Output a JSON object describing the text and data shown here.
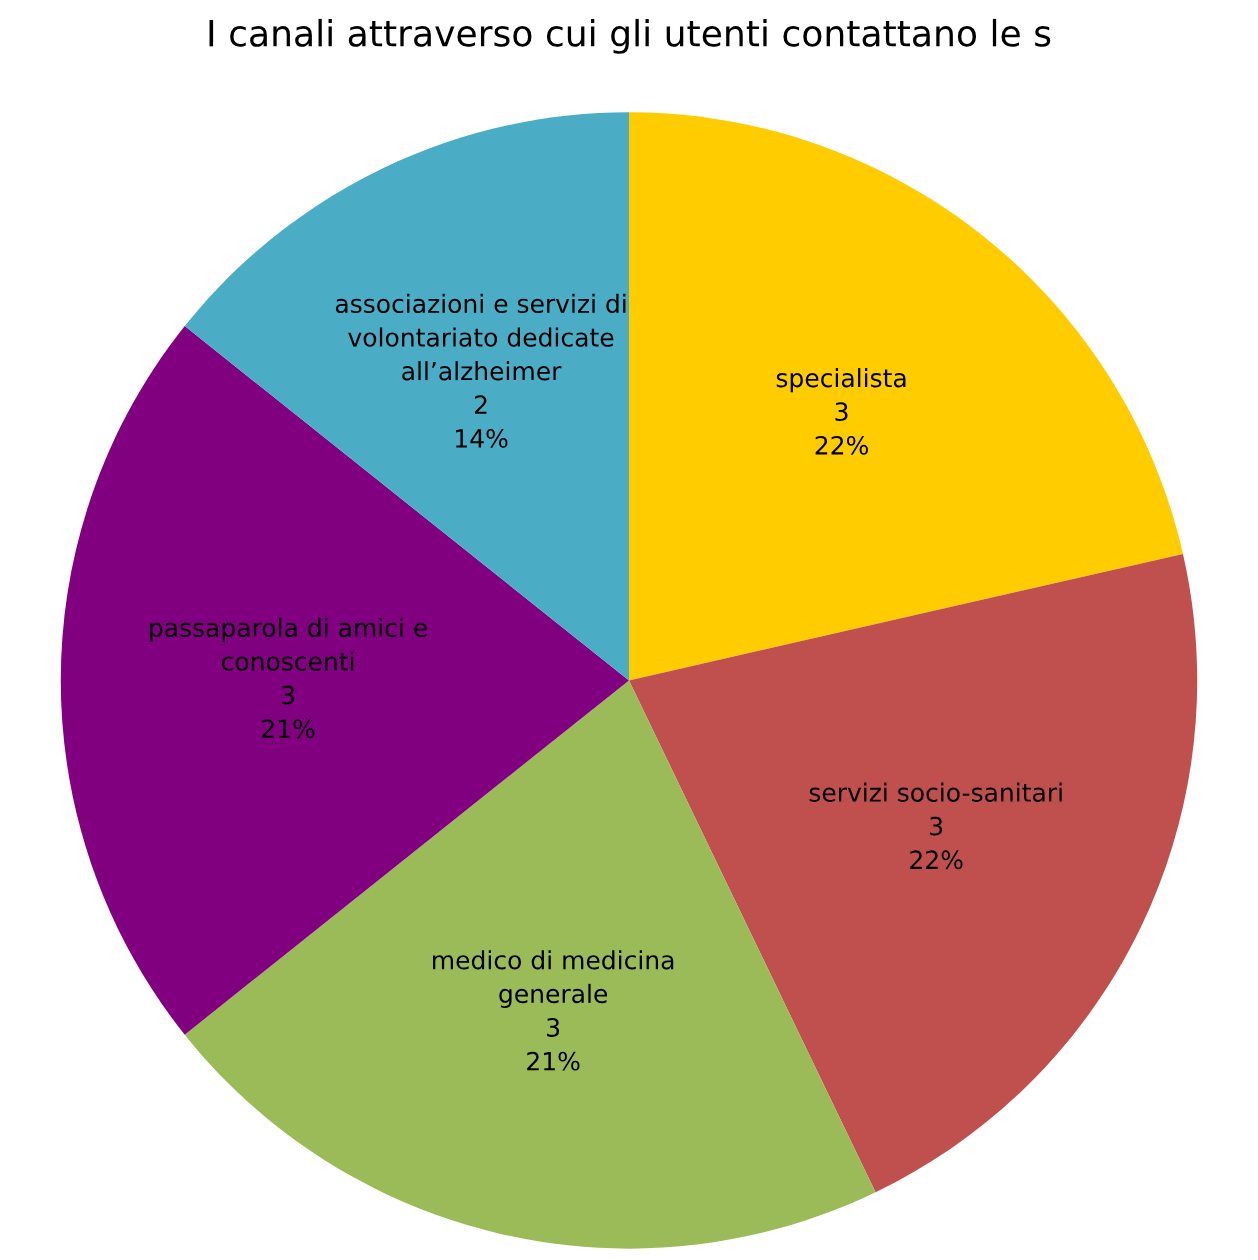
{
  "chart_data": {
    "type": "pie",
    "title": "I canali attraverso cui gli utenti contattano le s",
    "categories": [
      "specialista",
      "servizi socio-sanitari",
      "medico di medicina\ngenerale",
      "passaparola di amici e\nconoscenti",
      "associazioni e servizi di\nvolontariato dedicate\nall’alzheimer"
    ],
    "values": [
      3,
      3,
      3,
      3,
      2
    ],
    "value_labels": [
      "3\n22%",
      "3\n22%",
      "3\n21%",
      "3\n21%",
      "2\n14%"
    ],
    "colors": [
      "#ffcc00",
      "#c0504d",
      "#9bbb59",
      "#800080",
      "#4bacc6"
    ],
    "legend": false
  }
}
